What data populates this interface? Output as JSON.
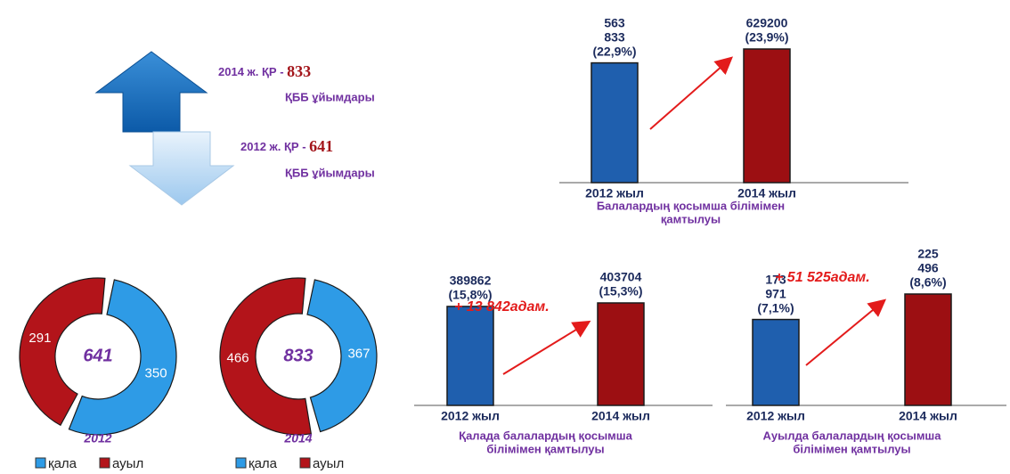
{
  "info": [
    {
      "text": "2014 ж. ҚР - ",
      "number": "833",
      "caption": "ҚББ ұйымдары"
    },
    {
      "text": "2012 ж. ҚР - ",
      "number": "641",
      "caption": "ҚББ ұйымдары"
    }
  ],
  "chart_data": [
    {
      "type": "bar",
      "categories": [
        "2012 жыл",
        "2014 жыл"
      ],
      "values": [
        563833,
        629200
      ],
      "value_labels": [
        [
          "563",
          "833",
          "(22,9%)"
        ],
        [
          "629200",
          "(23,9%)"
        ]
      ],
      "colors": [
        "#1f5fae",
        "#9c0f12"
      ],
      "xlabel": [
        "Балалардың қосымша білімімен",
        "қамтылуы"
      ]
    },
    {
      "type": "donut",
      "title": "2012",
      "categories": [
        "қала",
        "ауыл"
      ],
      "values": [
        350,
        291
      ],
      "colors": [
        "#2e9be6",
        "#b3141a"
      ],
      "total": 641
    },
    {
      "type": "donut",
      "title": "2014",
      "categories": [
        "қала",
        "ауыл"
      ],
      "values": [
        367,
        466
      ],
      "colors": [
        "#2e9be6",
        "#b3141a"
      ],
      "total": 833
    },
    {
      "type": "bar",
      "categories": [
        "2012 жыл",
        "2014 жыл"
      ],
      "values": [
        389862,
        403704
      ],
      "value_labels": [
        [
          "389862",
          "(15,8%)"
        ],
        [
          "403704",
          "(15,3%)"
        ]
      ],
      "colors": [
        "#1f5fae",
        "#9c0f12"
      ],
      "annotation": "+ 13 842адам.",
      "xlabel": [
        "Қалада балалардың қосымша",
        "білімімен қамтылуы"
      ]
    },
    {
      "type": "bar",
      "categories": [
        "2012 жыл",
        "2014 жыл"
      ],
      "values": [
        173971,
        225496
      ],
      "value_labels": [
        [
          "173",
          "971",
          "(7,1%)"
        ],
        [
          "225",
          "496",
          "(8,6%)"
        ]
      ],
      "colors": [
        "#1f5fae",
        "#9c0f12"
      ],
      "annotation": "+ 51 525адам.",
      "xlabel": [
        "Ауылда балалардың қосымша",
        "білімімен қамтылуы"
      ]
    }
  ]
}
